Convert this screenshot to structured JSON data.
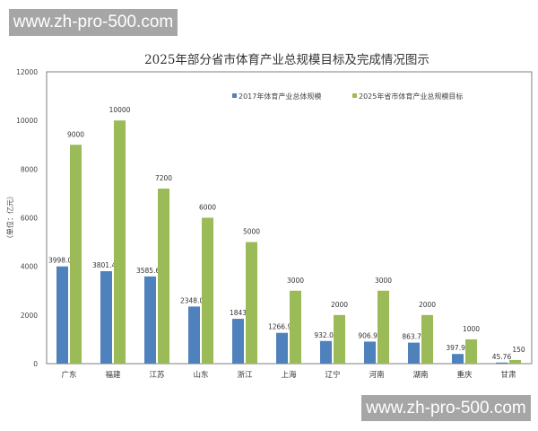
{
  "watermarks": [
    "www.zh-pro-500.com",
    "www.zh-pro-500.com"
  ],
  "chart_data": {
    "type": "bar",
    "title": "2025年部分省市体育产业总规模目标及完成情况图示",
    "ylabel": "（单位：亿元）",
    "xlabel": "",
    "ylim": [
      0,
      12000
    ],
    "yticks": [
      0,
      2000,
      4000,
      6000,
      8000,
      10000,
      12000
    ],
    "grid": false,
    "legend": "top-right",
    "categories": [
      "广东",
      "福建",
      "江苏",
      "山东",
      "浙江",
      "上海",
      "辽宁",
      "河南",
      "湖南",
      "重庆",
      "甘肃"
    ],
    "series": [
      {
        "name": "2017年体育产业总体规模",
        "color": "#4f81bd",
        "values": [
          3998.03,
          3801.41,
          3585.64,
          2348.01,
          1843,
          1266.93,
          932.09,
          906.99,
          863.74,
          397.91,
          45.76
        ],
        "labels": [
          "3998.03",
          "3801.41",
          "3585.64",
          "2348.01",
          "1843",
          "1266.93",
          "932.09",
          "906.99",
          "863.74",
          "397.91",
          "45.76"
        ]
      },
      {
        "name": "2025年省市体育产业总规模目标",
        "color": "#9bbb59",
        "values": [
          9000,
          10000,
          7200,
          6000,
          5000,
          3000,
          2000,
          3000,
          2000,
          1000,
          150
        ],
        "labels": [
          "9000",
          "10000",
          "7200",
          "6000",
          "5000",
          "3000",
          "2000",
          "3000",
          "2000",
          "1000",
          "150"
        ]
      }
    ]
  }
}
